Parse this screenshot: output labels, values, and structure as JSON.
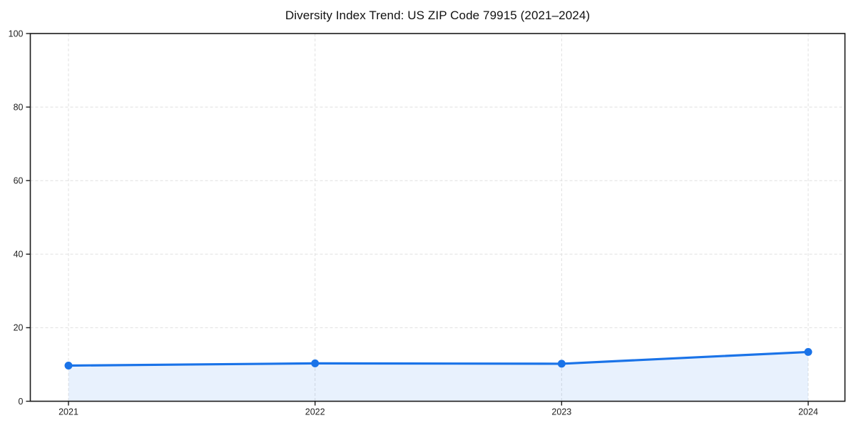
{
  "page": {
    "background": "#ffffff"
  },
  "chart_data": {
    "type": "line",
    "title": "Diversity Index Trend: US ZIP Code 79915 (2021–2024)",
    "categories": [
      "2021",
      "2022",
      "2023",
      "2024"
    ],
    "series": [
      {
        "name": "Diversity Index",
        "values": [
          9.7,
          10.3,
          10.2,
          13.4
        ]
      }
    ],
    "xlabel": "",
    "ylabel": "",
    "ylim": [
      0,
      100
    ],
    "yticks": [
      0,
      20,
      40,
      60,
      80,
      100
    ],
    "grid": true,
    "grid_style": "dashed",
    "legend": "none",
    "area_fill": true,
    "marker": "circle",
    "colors": {
      "line": "#1a73e8",
      "marker": "#1a73e8",
      "area_fill": "rgba(26,115,232,0.10)",
      "gridline": "#e0e0e0",
      "axis": "#1a1a1a",
      "tick_label": "#222222",
      "title": "#111111"
    }
  }
}
